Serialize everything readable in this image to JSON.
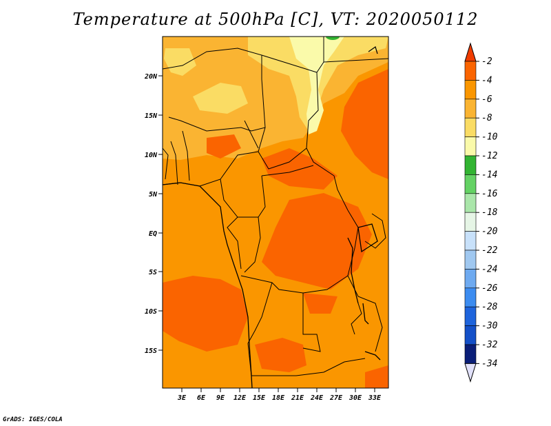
{
  "title": "Temperature at 500hPa [C], VT: 2020050112",
  "credit": "GrADS: IGES/COLA",
  "map": {
    "lat_ticks": [
      "20N",
      "15N",
      "10N",
      "5N",
      "EQ",
      "5S",
      "10S",
      "15S"
    ],
    "lon_ticks": [
      "3E",
      "6E",
      "9E",
      "12E",
      "15E",
      "18E",
      "21E",
      "24E",
      "27E",
      "30E",
      "33E"
    ]
  },
  "colorbar": {
    "labels": [
      "-2",
      "-4",
      "-6",
      "-8",
      "-10",
      "-12",
      "-14",
      "-16",
      "-18",
      "-20",
      "-22",
      "-24",
      "-26",
      "-28",
      "-30",
      "-32",
      "-34"
    ],
    "colors": [
      "#f03c00",
      "#fa6400",
      "#fa9600",
      "#fab432",
      "#fadc64",
      "#fafaaa",
      "#32b432",
      "#64d264",
      "#aae6aa",
      "#e6f5e6",
      "#c8e1fa",
      "#a0c8f0",
      "#6eaaf0",
      "#3c8cf0",
      "#1e64dc",
      "#1450c8",
      "#0a1e78",
      "#e1e1fa"
    ]
  }
}
